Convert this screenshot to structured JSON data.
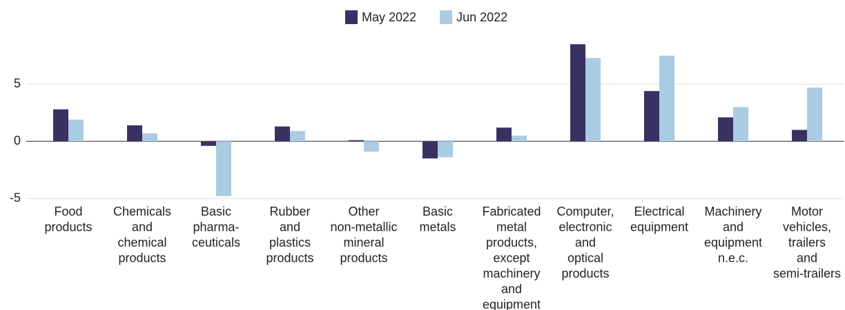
{
  "chart_data": {
    "type": "bar",
    "categories": [
      "Food\nproducts",
      "Chemicals\nand\nchemical\nproducts",
      "Basic\npharma-\nceuticals",
      "Rubber\nand\nplastics\nproducts",
      "Other\nnon-metallic\nmineral\nproducts",
      "Basic\nmetals",
      "Fabricated\nmetal\nproducts,\nexcept\nmachinery\nand\nequipment",
      "Computer,\nelectronic\nand\noptical\nproducts",
      "Electrical\nequipment",
      "Machinery\nand\nequipment\nn.e.c.",
      "Motor\nvehicles,\ntrailers\nand\nsemi-trailers"
    ],
    "series": [
      {
        "name": "May 2022",
        "color": "#3a3163",
        "values": [
          2.8,
          1.4,
          -0.4,
          1.3,
          0.1,
          -1.5,
          1.2,
          8.5,
          4.4,
          2.1,
          1.0
        ]
      },
      {
        "name": "Jun 2022",
        "color": "#a9cce3",
        "values": [
          1.9,
          0.7,
          -4.8,
          0.9,
          -0.9,
          -1.4,
          0.5,
          7.3,
          7.5,
          3.0,
          4.7
        ]
      }
    ],
    "ylim": [
      -5,
      9.6
    ],
    "yticks": [
      -5,
      0,
      5
    ],
    "grid": true,
    "legend": "top"
  }
}
